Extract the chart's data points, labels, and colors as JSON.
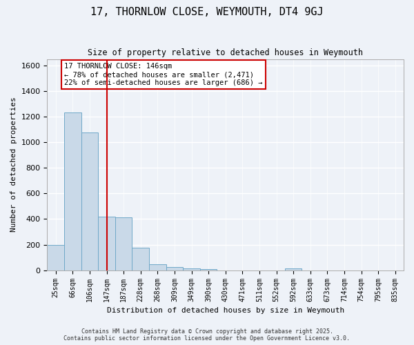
{
  "title": "17, THORNLOW CLOSE, WEYMOUTH, DT4 9GJ",
  "subtitle": "Size of property relative to detached houses in Weymouth",
  "xlabel": "Distribution of detached houses by size in Weymouth",
  "ylabel": "Number of detached properties",
  "bar_labels": [
    "25sqm",
    "66sqm",
    "106sqm",
    "147sqm",
    "187sqm",
    "228sqm",
    "268sqm",
    "309sqm",
    "349sqm",
    "390sqm",
    "430sqm",
    "471sqm",
    "511sqm",
    "552sqm",
    "592sqm",
    "633sqm",
    "673sqm",
    "714sqm",
    "754sqm",
    "795sqm",
    "835sqm"
  ],
  "bar_values": [
    200,
    1230,
    1075,
    420,
    415,
    175,
    45,
    25,
    15,
    10,
    0,
    0,
    0,
    0,
    15,
    0,
    0,
    0,
    0,
    0,
    0
  ],
  "bar_color": "#c9d9e8",
  "bar_edge_color": "#6fa8c8",
  "red_line_index": 3,
  "red_line_color": "#cc0000",
  "annotation_text": "17 THORNLOW CLOSE: 146sqm\n← 78% of detached houses are smaller (2,471)\n22% of semi-detached houses are larger (686) →",
  "annotation_box_color": "#ffffff",
  "annotation_box_edge": "#cc0000",
  "ylim": [
    0,
    1650
  ],
  "yticks": [
    0,
    200,
    400,
    600,
    800,
    1000,
    1200,
    1400,
    1600
  ],
  "background_color": "#eef2f8",
  "grid_color": "#ffffff",
  "footer_line1": "Contains HM Land Registry data © Crown copyright and database right 2025.",
  "footer_line2": "Contains public sector information licensed under the Open Government Licence v3.0."
}
